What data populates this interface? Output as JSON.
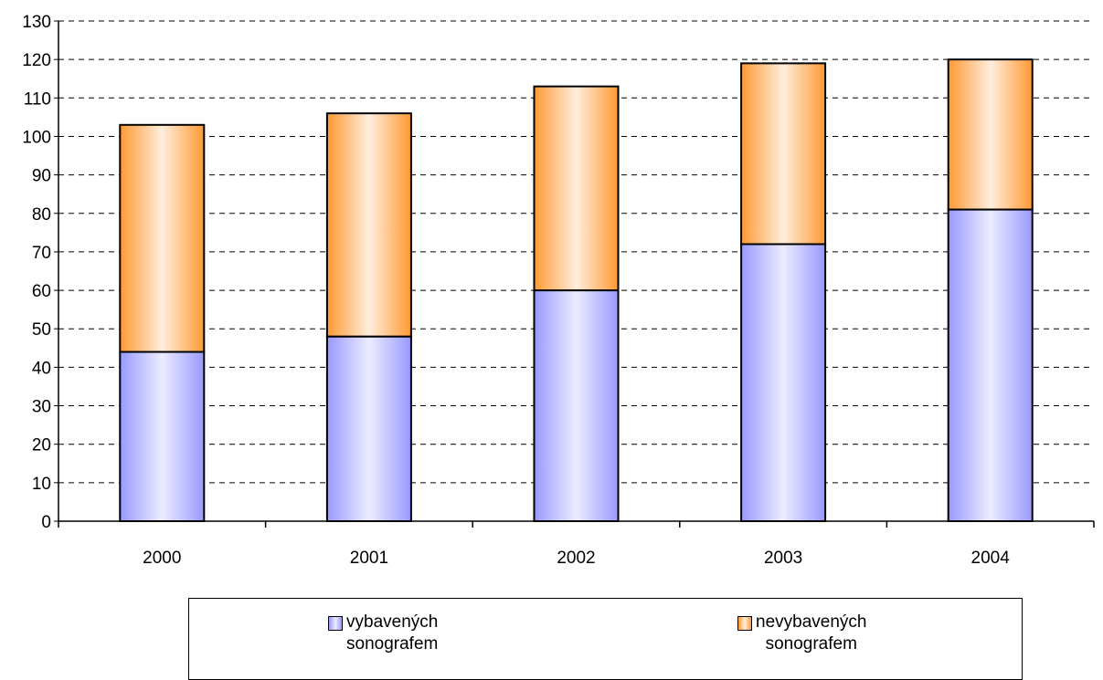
{
  "chart_data": {
    "type": "bar",
    "stacked": true,
    "categories": [
      "2000",
      "2001",
      "2002",
      "2003",
      "2004"
    ],
    "series": [
      {
        "name": "vybavených\nsonografem",
        "values": [
          44,
          48,
          60,
          72,
          81
        ],
        "color": "#9999ff",
        "highlight": "#ececff"
      },
      {
        "name": "nevybavených\nsonografem",
        "values": [
          59,
          58,
          53,
          47,
          39
        ],
        "color": "#ff9933",
        "highlight": "#ffeedd"
      }
    ],
    "ylim": [
      0,
      130
    ],
    "yticks": [
      "0",
      "10",
      "20",
      "30",
      "40",
      "50",
      "60",
      "70",
      "80",
      "90",
      "100",
      "110",
      "120",
      "130"
    ],
    "grid": true,
    "legend_position": "bottom"
  }
}
